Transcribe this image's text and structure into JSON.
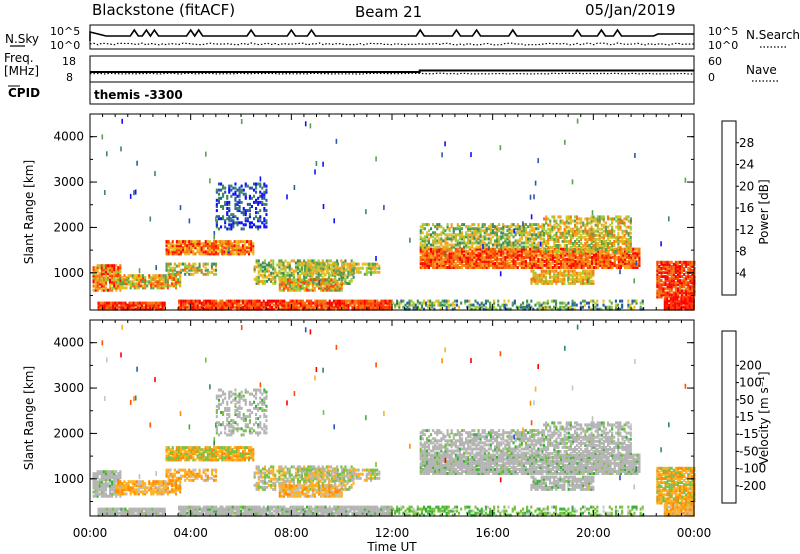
{
  "header": {
    "radar_title": "Blackstone (fitACF)",
    "beam": "Beam 21",
    "date": "05/Jan/2019"
  },
  "summary_panels": {
    "nsky_label": "N.Sky",
    "nsearch_label": "N.Search",
    "noise_top_tick": "10^5",
    "noise_bottom_tick": "10^0",
    "freq_label": "Freq.",
    "freq_unit": "[MHz]",
    "freq_top_tick": "18",
    "freq_bottom_tick": "8",
    "nave_label": "Nave",
    "nave_top_tick": "60",
    "nave_bottom_tick": "0",
    "cpid_label": "CPID",
    "cpid_value": "themis -3300"
  },
  "colors": {
    "palette_power": [
      "#1010ff",
      "#2a5aa8",
      "#3a8a5a",
      "#5aa050",
      "#9acd3a",
      "#e8c020",
      "#f5a020",
      "#f07a10",
      "#ff4000",
      "#ff0000"
    ],
    "palette_velocity": [
      "#ff0000",
      "#ff5000",
      "#ff8c00",
      "#ffb020",
      "#c0c0c0",
      "#c8c8c8",
      "#7ac040",
      "#3ab03a",
      "#2a8a5a",
      "#2a50c8"
    ],
    "ground_scatter": "#b4b4b4"
  },
  "chart_data": [
    {
      "type": "heatmap",
      "ylabel": "Slant Range [km]",
      "colorbar_label": "Power [dB]",
      "colorbar_ticks": [
        "4",
        "8",
        "12",
        "16",
        "20",
        "24",
        "28"
      ],
      "xlim_hours": [
        0,
        24
      ],
      "ylim_km": [
        180,
        4500
      ],
      "yticks": [
        "1000",
        "2000",
        "3000",
        "4000"
      ]
    },
    {
      "type": "heatmap",
      "ylabel": "Slant Range [km]",
      "colorbar_label": "Velocity [m s⁻¹]",
      "colorbar_ticks": [
        "-200",
        "-100",
        "-50",
        "-15",
        "15",
        "50",
        "100",
        "200"
      ],
      "xlim_hours": [
        0,
        24
      ],
      "ylim_km": [
        180,
        4500
      ],
      "yticks": [
        "1000",
        "2000",
        "3000",
        "4000"
      ]
    }
  ],
  "time_axis": {
    "xlabel": "Time UT",
    "ticks": [
      "00:00",
      "04:00",
      "08:00",
      "12:00",
      "16:00",
      "20:00",
      "00:00"
    ]
  }
}
